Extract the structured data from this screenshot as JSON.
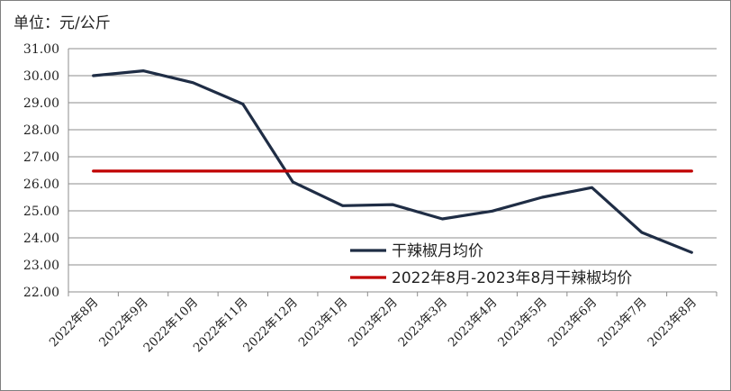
{
  "unit_label": "单位：元/公斤",
  "chart_data": {
    "type": "line",
    "categories": [
      "2022年8月",
      "2022年9月",
      "2022年10月",
      "2022年11月",
      "2022年12月",
      "2023年1月",
      "2023年2月",
      "2023年3月",
      "2023年4月",
      "2023年5月",
      "2023年6月",
      "2023年7月",
      "2023年8月"
    ],
    "ylim": [
      22.0,
      31.0
    ],
    "yticks": [
      "22.00",
      "23.00",
      "24.00",
      "25.00",
      "26.00",
      "27.00",
      "28.00",
      "29.00",
      "30.00",
      "31.00"
    ],
    "grid": true,
    "legend_position": "bottom-right (inside plot)",
    "series": [
      {
        "name": "干辣椒月均价",
        "color": "#1f2d45",
        "values": [
          30.0,
          30.18,
          29.74,
          28.95,
          26.07,
          25.19,
          25.23,
          24.7,
          24.99,
          25.5,
          25.86,
          24.2,
          23.46
        ]
      },
      {
        "name": "2022年8月-2023年8月干辣椒均价",
        "color": "#c00000",
        "values": [
          26.47,
          26.47,
          26.47,
          26.47,
          26.47,
          26.47,
          26.47,
          26.47,
          26.47,
          26.47,
          26.47,
          26.47,
          26.47
        ]
      }
    ]
  }
}
